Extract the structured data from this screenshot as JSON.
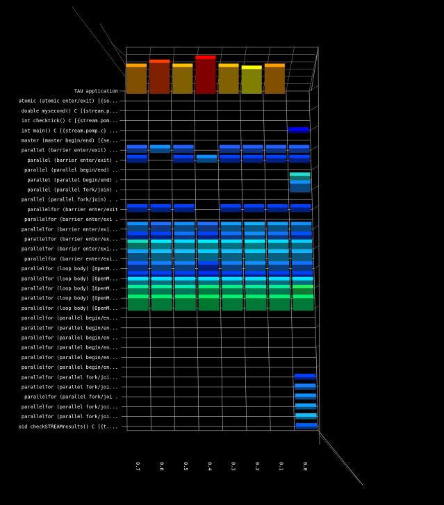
{
  "chart_data": {
    "type": "bar3d",
    "rows": [
      "TAU application",
      "atomic (atomic enter/exit) [{so...",
      "double mysecond() C [{stream.p...",
      "int checktick() C [{stream.pom...",
      "int main() C [{stream.pomp.c} ...",
      "master (master begin/end) [{se...",
      "parallel (barrier enter/exit) ...",
      "parallel (barrier enter/exit) .",
      "parallel (parallel begin/end) ..",
      "parallel (parallel begin/end) .",
      "parallel (parallel fork/join) .",
      "parallel (parallel fork/join) , .",
      "parallelfor (barrier enter/exit",
      "parallelfor (barrier enter/exi .",
      "parallelfor (barrier enter/exi...",
      "parallelfor (barrier enter/ex...",
      "parallelfor (barrier enter/exi...",
      "parallelfor (barrier enter/exi..",
      "parallelfor (loop body) [OpenM...",
      "parallelfor (loop body) [OpenM...",
      "parallelfor (loop body) [OpenM...",
      "parallelfor (loop body) [OpenM...",
      "parallelfor (loop body) [OpenM...",
      "parallelfor (parallel begin/en...",
      "parallelfor (parallel begin/en...",
      "parallelfor (parallel begin/en ..",
      "parallelfor (parallel begin/en...",
      "parallelfor (parallel begin/en...",
      "parallelfor (parallel begin/en...",
      "parallelfor (parallel fork/joi...",
      "parallelfor (parallel fork/joi...",
      "parallelfor (parallel fork/joi .",
      "parallelfor (parallel fork/joi...",
      "parallelfor (parallel fork/joi...",
      "oid checkSTREAMresults() C [{t...."
    ],
    "x_ticks": [
      "0.7",
      "0.6",
      "0.5",
      "0.4",
      "0.3",
      "0.2",
      "0.1",
      "0.0"
    ],
    "columns": [
      0.7,
      0.6,
      0.5,
      0.4,
      0.3,
      0.2,
      0.1,
      0.0
    ],
    "cells": [
      {
        "row": 0,
        "col": 0,
        "value": 0.75,
        "color": "#ffa000"
      },
      {
        "row": 0,
        "col": 1,
        "value": 0.85,
        "color": "#ff4000"
      },
      {
        "row": 0,
        "col": 2,
        "value": 0.75,
        "color": "#ffc000"
      },
      {
        "row": 0,
        "col": 3,
        "value": 0.95,
        "color": "#ff0000"
      },
      {
        "row": 0,
        "col": 4,
        "value": 0.75,
        "color": "#ffc000"
      },
      {
        "row": 0,
        "col": 5,
        "value": 0.7,
        "color": "#ffff00"
      },
      {
        "row": 0,
        "col": 6,
        "value": 0.75,
        "color": "#ffa000"
      },
      {
        "row": 4,
        "col": 7,
        "value": 0.15,
        "color": "#0000ff"
      },
      {
        "row": 6,
        "col": 0,
        "value": 0.2,
        "color": "#2060ff"
      },
      {
        "row": 6,
        "col": 1,
        "value": 0.2,
        "color": "#1090ff"
      },
      {
        "row": 6,
        "col": 2,
        "value": 0.2,
        "color": "#2060ff"
      },
      {
        "row": 6,
        "col": 4,
        "value": 0.2,
        "color": "#2060ff"
      },
      {
        "row": 6,
        "col": 5,
        "value": 0.2,
        "color": "#2060ff"
      },
      {
        "row": 6,
        "col": 6,
        "value": 0.2,
        "color": "#2060ff"
      },
      {
        "row": 6,
        "col": 7,
        "value": 0.2,
        "color": "#2060ff"
      },
      {
        "row": 7,
        "col": 0,
        "value": 0.2,
        "color": "#0040ff"
      },
      {
        "row": 7,
        "col": 2,
        "value": 0.2,
        "color": "#0040ff"
      },
      {
        "row": 7,
        "col": 3,
        "value": 0.2,
        "color": "#1090ff"
      },
      {
        "row": 7,
        "col": 4,
        "value": 0.2,
        "color": "#0040ff"
      },
      {
        "row": 7,
        "col": 5,
        "value": 0.2,
        "color": "#0040ff"
      },
      {
        "row": 7,
        "col": 6,
        "value": 0.2,
        "color": "#0040ff"
      },
      {
        "row": 7,
        "col": 7,
        "value": 0.2,
        "color": "#0040ff"
      },
      {
        "row": 9,
        "col": 7,
        "value": 0.25,
        "color": "#20e0d0"
      },
      {
        "row": 10,
        "col": 7,
        "value": 0.3,
        "color": "#1090ff"
      },
      {
        "row": 12,
        "col": 0,
        "value": 0.2,
        "color": "#0040ff"
      },
      {
        "row": 12,
        "col": 1,
        "value": 0.2,
        "color": "#0040ff"
      },
      {
        "row": 12,
        "col": 2,
        "value": 0.2,
        "color": "#0040ff"
      },
      {
        "row": 12,
        "col": 4,
        "value": 0.2,
        "color": "#0040ff"
      },
      {
        "row": 12,
        "col": 5,
        "value": 0.2,
        "color": "#0040ff"
      },
      {
        "row": 12,
        "col": 6,
        "value": 0.2,
        "color": "#0040ff"
      },
      {
        "row": 12,
        "col": 7,
        "value": 0.2,
        "color": "#0040ff"
      },
      {
        "row": 14,
        "col": 0,
        "value": 0.25,
        "color": "#1090ff"
      },
      {
        "row": 14,
        "col": 1,
        "value": 0.25,
        "color": "#2070ff"
      },
      {
        "row": 14,
        "col": 2,
        "value": 0.25,
        "color": "#1090ff"
      },
      {
        "row": 14,
        "col": 3,
        "value": 0.25,
        "color": "#2070ff"
      },
      {
        "row": 14,
        "col": 4,
        "value": 0.25,
        "color": "#10a0ff"
      },
      {
        "row": 14,
        "col": 5,
        "value": 0.25,
        "color": "#10b0ff"
      },
      {
        "row": 14,
        "col": 6,
        "value": 0.25,
        "color": "#10a0ff"
      },
      {
        "row": 14,
        "col": 7,
        "value": 0.25,
        "color": "#1090ff"
      },
      {
        "row": 15,
        "col": 0,
        "value": 0.25,
        "color": "#0040ff"
      },
      {
        "row": 15,
        "col": 1,
        "value": 0.25,
        "color": "#0040ff"
      },
      {
        "row": 15,
        "col": 2,
        "value": 0.25,
        "color": "#1070ff"
      },
      {
        "row": 15,
        "col": 3,
        "value": 0.25,
        "color": "#0040ff"
      },
      {
        "row": 15,
        "col": 4,
        "value": 0.25,
        "color": "#1070ff"
      },
      {
        "row": 15,
        "col": 5,
        "value": 0.25,
        "color": "#1090ff"
      },
      {
        "row": 15,
        "col": 6,
        "value": 0.25,
        "color": "#1070ff"
      },
      {
        "row": 15,
        "col": 7,
        "value": 0.25,
        "color": "#0050ff"
      },
      {
        "row": 16,
        "col": 0,
        "value": 0.3,
        "color": "#10e0c0"
      },
      {
        "row": 16,
        "col": 1,
        "value": 0.3,
        "color": "#00f0ff"
      },
      {
        "row": 16,
        "col": 2,
        "value": 0.3,
        "color": "#00e0ff"
      },
      {
        "row": 16,
        "col": 3,
        "value": 0.3,
        "color": "#00f0ff"
      },
      {
        "row": 16,
        "col": 4,
        "value": 0.3,
        "color": "#00e0ff"
      },
      {
        "row": 16,
        "col": 5,
        "value": 0.3,
        "color": "#00f0ff"
      },
      {
        "row": 16,
        "col": 6,
        "value": 0.3,
        "color": "#00e0ff"
      },
      {
        "row": 16,
        "col": 7,
        "value": 0.3,
        "color": "#00d0ff"
      },
      {
        "row": 17,
        "col": 0,
        "value": 0.3,
        "color": "#10a0ff"
      },
      {
        "row": 17,
        "col": 1,
        "value": 0.3,
        "color": "#10c0ff"
      },
      {
        "row": 17,
        "col": 2,
        "value": 0.3,
        "color": "#10c0ff"
      },
      {
        "row": 17,
        "col": 3,
        "value": 0.3,
        "color": "#00d0ff"
      },
      {
        "row": 17,
        "col": 4,
        "value": 0.3,
        "color": "#10c0ff"
      },
      {
        "row": 17,
        "col": 5,
        "value": 0.3,
        "color": "#00d0ff"
      },
      {
        "row": 17,
        "col": 6,
        "value": 0.3,
        "color": "#10c0ff"
      },
      {
        "row": 17,
        "col": 7,
        "value": 0.3,
        "color": "#10b0ff"
      },
      {
        "row": 18,
        "col": 0,
        "value": 0.25,
        "color": "#1060ff"
      },
      {
        "row": 18,
        "col": 1,
        "value": 0.25,
        "color": "#1080ff"
      },
      {
        "row": 18,
        "col": 2,
        "value": 0.25,
        "color": "#1080ff"
      },
      {
        "row": 18,
        "col": 3,
        "value": 0.25,
        "color": "#0040ff"
      },
      {
        "row": 18,
        "col": 4,
        "value": 0.25,
        "color": "#1080ff"
      },
      {
        "row": 18,
        "col": 5,
        "value": 0.25,
        "color": "#1090ff"
      },
      {
        "row": 18,
        "col": 6,
        "value": 0.25,
        "color": "#1080ff"
      },
      {
        "row": 18,
        "col": 7,
        "value": 0.25,
        "color": "#1070ff"
      },
      {
        "row": 19,
        "col": 0,
        "value": 0.25,
        "color": "#0040ff"
      },
      {
        "row": 19,
        "col": 1,
        "value": 0.25,
        "color": "#0040ff"
      },
      {
        "row": 19,
        "col": 2,
        "value": 0.25,
        "color": "#0040ff"
      },
      {
        "row": 19,
        "col": 3,
        "value": 0.25,
        "color": "#0030ff"
      },
      {
        "row": 19,
        "col": 4,
        "value": 0.25,
        "color": "#0040ff"
      },
      {
        "row": 19,
        "col": 5,
        "value": 0.25,
        "color": "#0040ff"
      },
      {
        "row": 19,
        "col": 6,
        "value": 0.25,
        "color": "#0040ff"
      },
      {
        "row": 19,
        "col": 7,
        "value": 0.25,
        "color": "#0040ff"
      },
      {
        "row": 20,
        "col": 0,
        "value": 0.35,
        "color": "#00e0ff"
      },
      {
        "row": 20,
        "col": 1,
        "value": 0.35,
        "color": "#00e0ff"
      },
      {
        "row": 20,
        "col": 2,
        "value": 0.35,
        "color": "#00e0ff"
      },
      {
        "row": 20,
        "col": 3,
        "value": 0.35,
        "color": "#00e0ff"
      },
      {
        "row": 20,
        "col": 4,
        "value": 0.35,
        "color": "#00e0ff"
      },
      {
        "row": 20,
        "col": 5,
        "value": 0.35,
        "color": "#00e0ff"
      },
      {
        "row": 20,
        "col": 6,
        "value": 0.35,
        "color": "#00e0ff"
      },
      {
        "row": 20,
        "col": 7,
        "value": 0.35,
        "color": "#00e0ff"
      },
      {
        "row": 21,
        "col": 0,
        "value": 0.4,
        "color": "#00f0a0"
      },
      {
        "row": 21,
        "col": 1,
        "value": 0.4,
        "color": "#00f0a0"
      },
      {
        "row": 21,
        "col": 2,
        "value": 0.4,
        "color": "#00f0b0"
      },
      {
        "row": 21,
        "col": 3,
        "value": 0.4,
        "color": "#00f080"
      },
      {
        "row": 21,
        "col": 4,
        "value": 0.4,
        "color": "#00f090"
      },
      {
        "row": 21,
        "col": 5,
        "value": 0.4,
        "color": "#00f0a0"
      },
      {
        "row": 21,
        "col": 6,
        "value": 0.4,
        "color": "#00f0a0"
      },
      {
        "row": 21,
        "col": 7,
        "value": 0.4,
        "color": "#20f060"
      },
      {
        "row": 22,
        "col": 0,
        "value": 0.4,
        "color": "#00f070"
      },
      {
        "row": 22,
        "col": 1,
        "value": 0.4,
        "color": "#00f070"
      },
      {
        "row": 22,
        "col": 2,
        "value": 0.4,
        "color": "#00f070"
      },
      {
        "row": 22,
        "col": 3,
        "value": 0.4,
        "color": "#00f060"
      },
      {
        "row": 22,
        "col": 4,
        "value": 0.4,
        "color": "#00f070"
      },
      {
        "row": 22,
        "col": 5,
        "value": 0.4,
        "color": "#00f070"
      },
      {
        "row": 22,
        "col": 6,
        "value": 0.4,
        "color": "#00f070"
      },
      {
        "row": 22,
        "col": 7,
        "value": 0.4,
        "color": "#00f070"
      },
      {
        "row": 29,
        "col": 7,
        "value": 0.15,
        "color": "#0040ff"
      },
      {
        "row": 30,
        "col": 7,
        "value": 0.15,
        "color": "#1080ff"
      },
      {
        "row": 31,
        "col": 7,
        "value": 0.15,
        "color": "#1090ff"
      },
      {
        "row": 32,
        "col": 7,
        "value": 0.15,
        "color": "#10a0ff"
      },
      {
        "row": 33,
        "col": 7,
        "value": 0.15,
        "color": "#10c0ff"
      },
      {
        "row": 34,
        "col": 7,
        "value": 0.15,
        "color": "#0060ff"
      }
    ]
  }
}
